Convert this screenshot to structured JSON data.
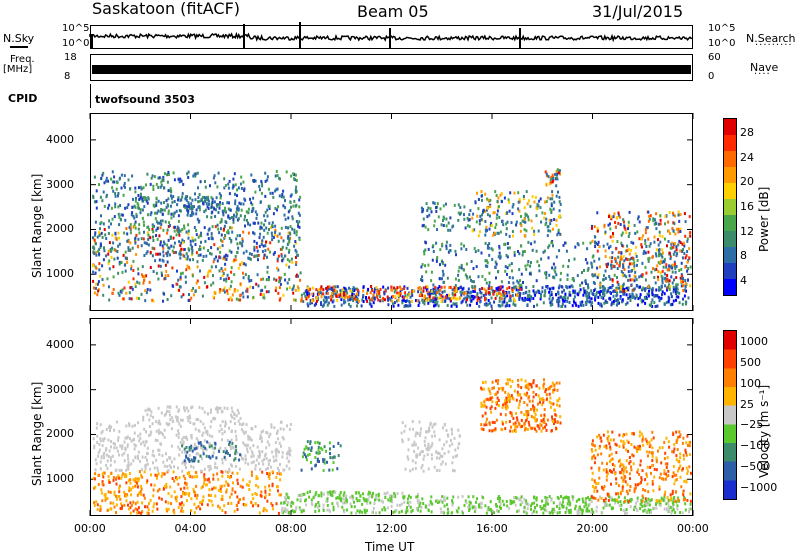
{
  "header": {
    "station": "Saskatoon (fitACF)",
    "beam": "Beam 05",
    "date": "31/Jul/2015"
  },
  "top_panels": {
    "nsky_label": "N.Sky",
    "nsearch_label": "N.Search",
    "noise_ticks_left": [
      "10^5",
      "10^0"
    ],
    "noise_ticks_right": [
      "10^5",
      "10^0"
    ],
    "freq_label_top": "Freq.",
    "freq_label_unit": "[MHz]",
    "freq_ticks": [
      "18",
      "8"
    ],
    "nave_label": "Nave",
    "nave_ticks": [
      "60",
      "0"
    ],
    "cpid_label": "CPID",
    "cpid_value": "twofsound 3503"
  },
  "chart_data": [
    {
      "type": "heatmap",
      "name": "Power",
      "ylabel": "Slant Range [km]",
      "ylim": [
        180,
        4600
      ],
      "yticks": [
        1000,
        2000,
        3000,
        4000
      ],
      "colorbar_label": "Power [dB]",
      "colorbar_ticks": [
        "28",
        "24",
        "20",
        "16",
        "12",
        "8",
        "4"
      ],
      "colors": [
        "#0000ff",
        "#1f3fbf",
        "#2e6ea6",
        "#3c8c6c",
        "#4aa64a",
        "#9acd32",
        "#ffd000",
        "#ff9a00",
        "#ff6a00",
        "#ff2a00",
        "#e00000"
      ]
    },
    {
      "type": "heatmap",
      "name": "Velocity",
      "ylabel": "Slant Range [km]",
      "ylim": [
        180,
        4600
      ],
      "yticks": [
        1000,
        2000,
        3000,
        4000
      ],
      "colorbar_label": "Velocity [m s⁻¹]",
      "colorbar_ticks": [
        "1000",
        "500",
        "100",
        "25",
        "−25",
        "−100",
        "−500",
        "−1000"
      ],
      "colors": [
        "#1a2ecf",
        "#2e5ea8",
        "#3c8c6c",
        "#5ac82e",
        "#c8c8c8",
        "#ffb400",
        "#ff8000",
        "#ff4000",
        "#e00000"
      ]
    }
  ],
  "x_axis": {
    "label": "Time UT",
    "ticks": [
      "00:00",
      "04:00",
      "08:00",
      "12:00",
      "16:00",
      "20:00",
      "00:00"
    ]
  }
}
